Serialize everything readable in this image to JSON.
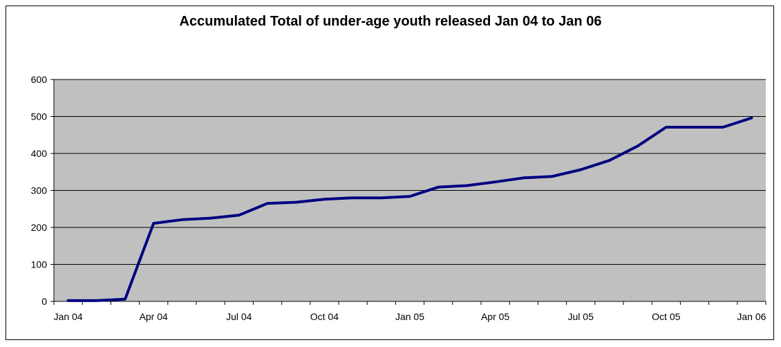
{
  "chart_data": {
    "type": "line",
    "title": "Accumulated Total of under-age youth released Jan 04 to Jan 06",
    "xlabel": "",
    "ylabel": "",
    "ylim": [
      0,
      600
    ],
    "y_ticks": [
      0,
      100,
      200,
      300,
      400,
      500,
      600
    ],
    "x_tick_labels": [
      "Jan 04",
      "Apr 04",
      "Jul 04",
      "Oct 04",
      "Jan 05",
      "Apr 05",
      "Jul 05",
      "Oct 05",
      "Jan 06"
    ],
    "x": [
      "Jan 04",
      "Feb 04",
      "Mar 04",
      "Apr 04",
      "May 04",
      "Jun 04",
      "Jul 04",
      "Aug 04",
      "Sep 04",
      "Oct 04",
      "Nov 04",
      "Dec 04",
      "Jan 05",
      "Feb 05",
      "Mar 05",
      "Apr 05",
      "May 05",
      "Jun 05",
      "Jul 05",
      "Aug 05",
      "Sep 05",
      "Oct 05",
      "Nov 05",
      "Dec 05",
      "Jan 06"
    ],
    "series": [
      {
        "values": [
          2,
          2,
          6,
          211,
          221,
          225,
          233,
          265,
          268,
          276,
          280,
          280,
          284,
          309,
          313,
          323,
          334,
          338,
          356,
          381,
          420,
          471,
          471,
          471,
          496
        ]
      }
    ],
    "grid": true,
    "legend": "none",
    "colors": {
      "line": "#000080",
      "plot_background": "#c0c0c0",
      "gridline": "#000000"
    }
  }
}
